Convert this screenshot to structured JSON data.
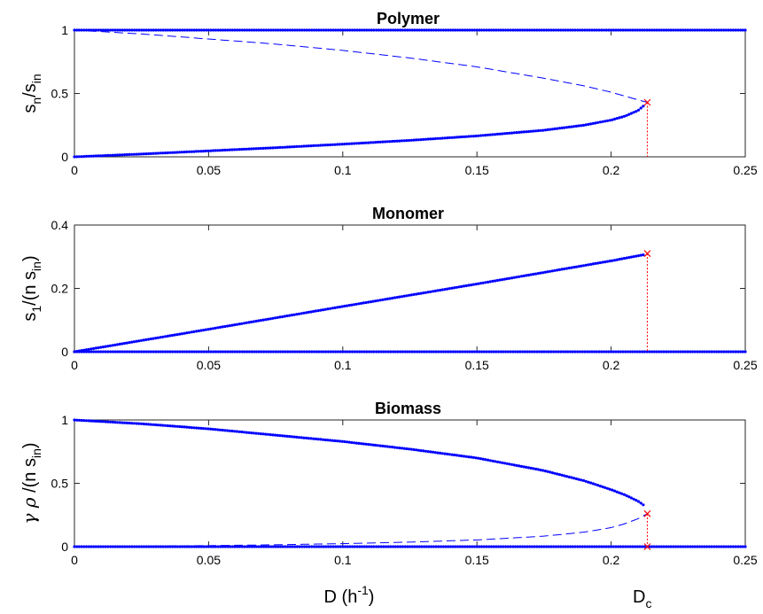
{
  "chart_data": [
    {
      "type": "line",
      "title": "Polymer",
      "ylabel": {
        "main": "s",
        "sub1": "n",
        "mid": "/s",
        "sub2": "in"
      },
      "xlim": [
        0,
        0.25
      ],
      "ylim": [
        0,
        1
      ],
      "x_ticks": [
        "0",
        "0.05",
        "0.1",
        "0.15",
        "0.2",
        "0.25"
      ],
      "y_ticks": [
        "0",
        "0.5",
        "1"
      ],
      "y_tick_values": [
        0,
        0.5,
        1
      ],
      "Dc": 0.2135,
      "series": [
        {
          "style": "dots",
          "x": [
            0,
            0.25
          ],
          "y": [
            1,
            1
          ]
        },
        {
          "style": "dots",
          "x": [
            0,
            0.025,
            0.05,
            0.075,
            0.1,
            0.125,
            0.15,
            0.175,
            0.19,
            0.2,
            0.205,
            0.21,
            0.212
          ],
          "y": [
            0,
            0.022,
            0.047,
            0.072,
            0.1,
            0.13,
            0.165,
            0.21,
            0.25,
            0.29,
            0.32,
            0.365,
            0.4
          ]
        },
        {
          "style": "dashed",
          "x": [
            0,
            0.025,
            0.05,
            0.075,
            0.1,
            0.125,
            0.15,
            0.175,
            0.19,
            0.2,
            0.205,
            0.21,
            0.2135
          ],
          "y": [
            1,
            0.97,
            0.93,
            0.89,
            0.84,
            0.78,
            0.71,
            0.62,
            0.56,
            0.51,
            0.48,
            0.45,
            0.43
          ]
        }
      ],
      "marker": {
        "x": 0.2135,
        "y": 0.43
      }
    },
    {
      "type": "line",
      "title": "Monomer",
      "ylabel": {
        "main": "s",
        "sub1": "1",
        "mid": "/(n s",
        "sub2": "in",
        "end": ")"
      },
      "xlim": [
        0,
        0.25
      ],
      "ylim": [
        0,
        0.4
      ],
      "x_ticks": [
        "0",
        "0.05",
        "0.1",
        "0.15",
        "0.2",
        "0.25"
      ],
      "y_ticks": [
        "0",
        "0.2",
        "0.4"
      ],
      "y_tick_values": [
        0,
        0.2,
        0.4
      ],
      "Dc": 0.2135,
      "series": [
        {
          "style": "dots",
          "x": [
            0,
            0.25
          ],
          "y": [
            0,
            0
          ]
        },
        {
          "style": "dots",
          "x": [
            0,
            0.05,
            0.1,
            0.15,
            0.2,
            0.212
          ],
          "y": [
            0,
            0.071,
            0.143,
            0.214,
            0.287,
            0.306
          ]
        }
      ],
      "marker": {
        "x": 0.2135,
        "y": 0.31
      }
    },
    {
      "type": "line",
      "title": "Biomass",
      "ylabel": {
        "greek": "γ ρ",
        "mid": " /(n s",
        "sub2": "in",
        "end": ")"
      },
      "xlim": [
        0,
        0.25
      ],
      "ylim": [
        0,
        1
      ],
      "x_ticks": [
        "0",
        "0.05",
        "0.1",
        "0.15",
        "0.2",
        "0.25"
      ],
      "y_ticks": [
        "0",
        "0.5",
        "1"
      ],
      "y_tick_values": [
        0,
        0.5,
        1
      ],
      "Dc": 0.2135,
      "series": [
        {
          "style": "dots",
          "x": [
            0,
            0.25
          ],
          "y": [
            0,
            0
          ]
        },
        {
          "style": "dots",
          "x": [
            0,
            0.025,
            0.05,
            0.075,
            0.1,
            0.125,
            0.15,
            0.175,
            0.19,
            0.2,
            0.205,
            0.21,
            0.212
          ],
          "y": [
            1,
            0.97,
            0.93,
            0.88,
            0.83,
            0.77,
            0.7,
            0.6,
            0.52,
            0.45,
            0.41,
            0.36,
            0.33
          ]
        },
        {
          "style": "dashed",
          "x": [
            0,
            0.025,
            0.05,
            0.075,
            0.1,
            0.125,
            0.15,
            0.175,
            0.19,
            0.2,
            0.205,
            0.21,
            0.2135
          ],
          "y": [
            0,
            0.004,
            0.008,
            0.015,
            0.024,
            0.036,
            0.053,
            0.083,
            0.115,
            0.15,
            0.18,
            0.22,
            0.26
          ]
        }
      ],
      "marker": {
        "x": 0.2135,
        "y": 0.26
      }
    }
  ],
  "xlabel": {
    "main": "D  (h",
    "sup": "-1",
    "end": ")"
  },
  "dc_label": {
    "main": "D",
    "sub": "c"
  },
  "colors": {
    "series": "#0000ff",
    "marker": "#ff0000",
    "axis": "#262626"
  }
}
